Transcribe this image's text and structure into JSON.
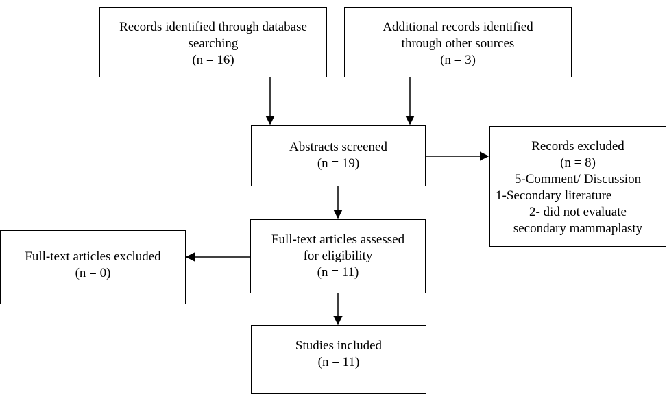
{
  "boxes": {
    "database_search": [
      "Records identified through database",
      "searching",
      "(n = 16)"
    ],
    "other_sources": [
      "Additional records identified",
      "through other sources",
      "(n = 3)"
    ],
    "abstracts_screened": [
      "Abstracts screened",
      "(n = 19)"
    ],
    "records_excluded": [
      "Records excluded",
      "(n = 8)",
      "5-Comment/ Discussion",
      "1-Secondary literature",
      "2- did not evaluate",
      "secondary mammaplasty"
    ],
    "fulltext_assessed": [
      "Full-text articles assessed",
      "for eligibility",
      "(n = 11)"
    ],
    "fulltext_excluded": [
      "Full-text articles excluded",
      "(n = 0)"
    ],
    "studies_included": [
      "Studies included",
      "(n = 11)"
    ]
  }
}
